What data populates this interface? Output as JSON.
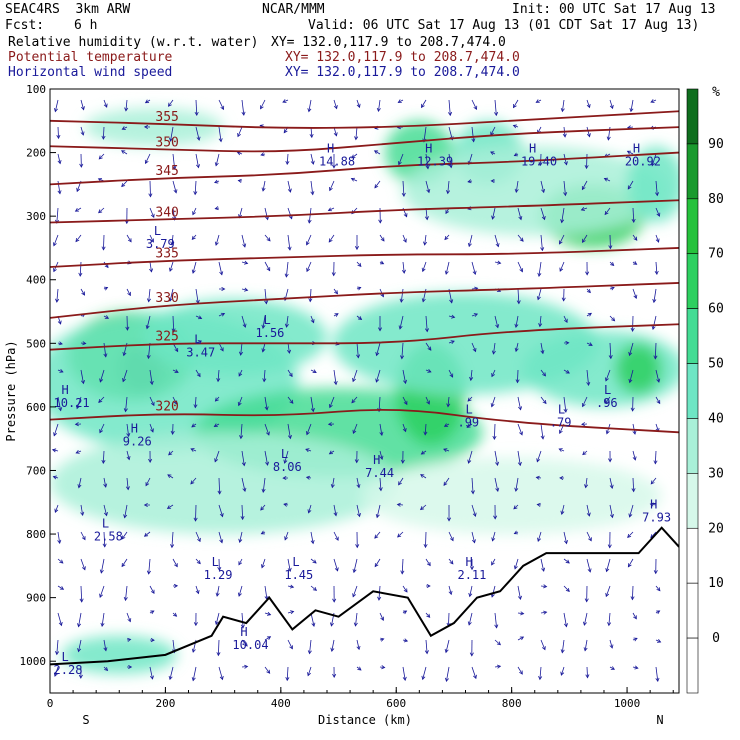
{
  "header": {
    "model": "SEAC4RS  3km ARW",
    "org": "NCAR/MMM",
    "init": "Init: 00 UTC Sat 17 Aug 13",
    "fcst_label": "Fcst:",
    "fcst_value": "6 h",
    "valid": "Valid: 06 UTC Sat 17 Aug 13 (01 CDT Sat 17 Aug 13)",
    "fields": [
      {
        "label": "Relative humidity (w.r.t. water)",
        "xy": "XY= 132.0,117.9 to 208.7,474.0"
      },
      {
        "label": "Potential temperature",
        "xy": "XY= 132.0,117.9 to 208.7,474.0"
      },
      {
        "label": "Horizontal wind speed",
        "xy": "XY= 132.0,117.9 to 208.7,474.0"
      }
    ]
  },
  "colors": {
    "rh_shades": [
      "#ffffff",
      "#ffffff",
      "#ffffff",
      "#d6f8ea",
      "#a9f0d8",
      "#6ee6c4",
      "#44dc94",
      "#2ed060",
      "#26c23c",
      "#1a9a2e",
      "#0f6e1e"
    ],
    "theta": "#8a1a1a",
    "wind": "#1a1a9a",
    "terrain": "#000000"
  },
  "chart_data": {
    "type": "heatmap",
    "xlabel": "Distance (km)",
    "ylabel": "Pressure (hPa)",
    "xlim": [
      0,
      1090
    ],
    "ylim": [
      1050,
      100
    ],
    "x_ticks": [
      "0",
      "200",
      "400",
      "600",
      "800",
      "1000"
    ],
    "x_tick_values": [
      0,
      200,
      400,
      600,
      800,
      1000
    ],
    "y_ticks": [
      "100",
      "200",
      "300",
      "400",
      "500",
      "600",
      "700",
      "800",
      "900",
      "1000"
    ],
    "y_tick_values": [
      100,
      200,
      300,
      400,
      500,
      600,
      700,
      800,
      900,
      1000
    ],
    "end_labels": [
      "S",
      "N"
    ],
    "colorbar": {
      "unit": "%",
      "labels": [
        "90",
        "80",
        "70",
        "60",
        "50",
        "40",
        "30",
        "20",
        "10",
        "0"
      ],
      "values": [
        90,
        80,
        70,
        60,
        50,
        40,
        30,
        20,
        10,
        0
      ]
    },
    "rh_blobs": [
      {
        "x": 140,
        "p": 520,
        "rx": 110,
        "rp": 70,
        "rh": 80
      },
      {
        "x": 160,
        "p": 540,
        "rx": 40,
        "rp": 40,
        "rh": 95
      },
      {
        "x": 200,
        "p": 560,
        "rx": 230,
        "rp": 110,
        "rh": 55
      },
      {
        "x": 320,
        "p": 490,
        "rx": 160,
        "rp": 60,
        "rh": 50
      },
      {
        "x": 500,
        "p": 640,
        "rx": 250,
        "rp": 70,
        "rh": 62
      },
      {
        "x": 660,
        "p": 580,
        "rx": 60,
        "rp": 80,
        "rh": 78
      },
      {
        "x": 720,
        "p": 500,
        "rx": 230,
        "rp": 80,
        "rh": 55
      },
      {
        "x": 960,
        "p": 540,
        "rx": 140,
        "rp": 60,
        "rh": 58
      },
      {
        "x": 1020,
        "p": 540,
        "rx": 40,
        "rp": 40,
        "rh": 78
      },
      {
        "x": 300,
        "p": 720,
        "rx": 300,
        "rp": 80,
        "rh": 40
      },
      {
        "x": 800,
        "p": 740,
        "rx": 260,
        "rp": 60,
        "rh": 38
      },
      {
        "x": 640,
        "p": 200,
        "rx": 60,
        "rp": 50,
        "rh": 60
      },
      {
        "x": 760,
        "p": 200,
        "rx": 60,
        "rp": 50,
        "rh": 55
      },
      {
        "x": 940,
        "p": 300,
        "rx": 90,
        "rp": 50,
        "rh": 70
      },
      {
        "x": 840,
        "p": 260,
        "rx": 230,
        "rp": 70,
        "rh": 45
      },
      {
        "x": 180,
        "p": 160,
        "rx": 120,
        "rp": 30,
        "rh": 40
      },
      {
        "x": 1050,
        "p": 250,
        "rx": 50,
        "rp": 60,
        "rh": 55
      },
      {
        "x": 120,
        "p": 990,
        "rx": 100,
        "rp": 30,
        "rh": 55
      }
    ],
    "theta_contours": [
      {
        "value": 355,
        "label": "355",
        "pts": [
          [
            0,
            150
          ],
          [
            200,
            155
          ],
          [
            400,
            162
          ],
          [
            600,
            160
          ],
          [
            800,
            150
          ],
          [
            1090,
            135
          ]
        ]
      },
      {
        "value": 350,
        "label": "350",
        "pts": [
          [
            0,
            190
          ],
          [
            200,
            195
          ],
          [
            400,
            200
          ],
          [
            600,
            185
          ],
          [
            800,
            170
          ],
          [
            1090,
            160
          ]
        ]
      },
      {
        "value": 345,
        "label": "345",
        "pts": [
          [
            0,
            250
          ],
          [
            200,
            240
          ],
          [
            400,
            235
          ],
          [
            600,
            220
          ],
          [
            800,
            215
          ],
          [
            1090,
            200
          ]
        ]
      },
      {
        "value": 340,
        "label": "340",
        "pts": [
          [
            0,
            310
          ],
          [
            200,
            305
          ],
          [
            400,
            300
          ],
          [
            600,
            290
          ],
          [
            800,
            285
          ],
          [
            1090,
            275
          ]
        ]
      },
      {
        "value": 335,
        "label": "335",
        "pts": [
          [
            0,
            380
          ],
          [
            200,
            370
          ],
          [
            400,
            365
          ],
          [
            600,
            360
          ],
          [
            800,
            360
          ],
          [
            1090,
            350
          ]
        ]
      },
      {
        "value": 330,
        "label": "330",
        "pts": [
          [
            0,
            460
          ],
          [
            200,
            440
          ],
          [
            400,
            430
          ],
          [
            600,
            420
          ],
          [
            800,
            415
          ],
          [
            1090,
            405
          ]
        ]
      },
      {
        "value": 325,
        "label": "325",
        "pts": [
          [
            0,
            510
          ],
          [
            200,
            500
          ],
          [
            400,
            500
          ],
          [
            600,
            500
          ],
          [
            800,
            480
          ],
          [
            1090,
            470
          ]
        ]
      },
      {
        "value": 320,
        "label": "320",
        "pts": [
          [
            0,
            620
          ],
          [
            200,
            610
          ],
          [
            400,
            615
          ],
          [
            600,
            600
          ],
          [
            800,
            625
          ],
          [
            1090,
            640
          ]
        ]
      }
    ],
    "terrain": [
      [
        0,
        1005
      ],
      [
        100,
        1000
      ],
      [
        200,
        990
      ],
      [
        280,
        960
      ],
      [
        300,
        930
      ],
      [
        340,
        940
      ],
      [
        380,
        900
      ],
      [
        420,
        950
      ],
      [
        460,
        920
      ],
      [
        500,
        930
      ],
      [
        560,
        890
      ],
      [
        620,
        900
      ],
      [
        660,
        960
      ],
      [
        700,
        940
      ],
      [
        740,
        900
      ],
      [
        780,
        890
      ],
      [
        820,
        850
      ],
      [
        860,
        830
      ],
      [
        900,
        830
      ],
      [
        940,
        830
      ],
      [
        980,
        830
      ],
      [
        1020,
        830
      ],
      [
        1060,
        790
      ],
      [
        1090,
        820
      ]
    ],
    "extrema": [
      {
        "t": "H",
        "v": "10.21",
        "x": 20,
        "p": 580
      },
      {
        "t": "H",
        "v": "9.26",
        "x": 140,
        "p": 640
      },
      {
        "t": "L",
        "v": "3.79",
        "x": 180,
        "p": 330
      },
      {
        "t": "L",
        "v": "3.47",
        "x": 250,
        "p": 500
      },
      {
        "t": "L",
        "v": "1.56",
        "x": 370,
        "p": 470
      },
      {
        "t": "H",
        "v": "14.88",
        "x": 480,
        "p": 200
      },
      {
        "t": "H",
        "v": "12.39",
        "x": 650,
        "p": 200
      },
      {
        "t": "H",
        "v": "19.40",
        "x": 830,
        "p": 200
      },
      {
        "t": "H",
        "v": "20.92",
        "x": 1010,
        "p": 200
      },
      {
        "t": "L",
        "v": "2.58",
        "x": 90,
        "p": 790
      },
      {
        "t": "L",
        "v": "1.29",
        "x": 280,
        "p": 850
      },
      {
        "t": "L",
        "v": "8.06",
        "x": 400,
        "p": 680
      },
      {
        "t": "H",
        "v": "7.44",
        "x": 560,
        "p": 690
      },
      {
        "t": "L",
        "v": ".99",
        "x": 720,
        "p": 610
      },
      {
        "t": "L",
        "v": ".79",
        "x": 880,
        "p": 610
      },
      {
        "t": "L",
        "v": ".96",
        "x": 960,
        "p": 580
      },
      {
        "t": "H",
        "v": "7.93",
        "x": 1040,
        "p": 760
      },
      {
        "t": "L",
        "v": "1.45",
        "x": 420,
        "p": 850
      },
      {
        "t": "H",
        "v": "10.04",
        "x": 330,
        "p": 960
      },
      {
        "t": "L",
        "v": "2.28",
        "x": 20,
        "p": 1000
      },
      {
        "t": "H",
        "v": "2.11",
        "x": 720,
        "p": 850
      }
    ]
  }
}
